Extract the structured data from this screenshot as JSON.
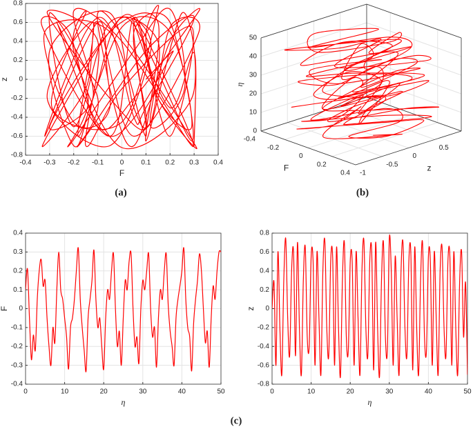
{
  "chart_data": [
    {
      "type": "phase",
      "xlabel": "F",
      "ylabel": "z",
      "caption": "(a)",
      "color": "#ff0000",
      "grid": true,
      "xlim": [
        -0.4,
        0.4
      ],
      "xticks": [
        -0.4,
        -0.3,
        -0.2,
        -0.1,
        0,
        0.1,
        0.2,
        0.3,
        0.4
      ],
      "ylim": [
        -0.8,
        0.8
      ],
      "yticks": [
        -0.8,
        -0.6,
        -0.4,
        -0.2,
        0,
        0.2,
        0.4,
        0.6,
        0.8
      ]
    },
    {
      "type": "line3d",
      "xlabel": "F",
      "ylabel": "z",
      "zlabel": "η",
      "caption": "(b)",
      "color": "#ff0000",
      "grid": true,
      "xlim": [
        -0.4,
        0.4
      ],
      "xticks": [
        -0.4,
        -0.2,
        0,
        0.2,
        0.4
      ],
      "ylim": [
        -1,
        1
      ],
      "yticks": [
        -1,
        -0.5,
        0,
        0.5
      ],
      "zlim": [
        0,
        50
      ],
      "zticks": [
        0,
        10,
        20,
        30,
        40,
        50
      ]
    },
    {
      "type": "line",
      "xlabel": "η",
      "ylabel": "F",
      "caption": "(c)",
      "color": "#ff0000",
      "grid": true,
      "xlim": [
        0,
        50
      ],
      "xticks": [
        0,
        10,
        20,
        30,
        40,
        50
      ],
      "ylim": [
        -0.4,
        0.4
      ],
      "yticks": [
        -0.4,
        -0.3,
        -0.2,
        -0.1,
        0,
        0.1,
        0.2,
        0.3,
        0.4
      ],
      "x": [
        0,
        0.5,
        1,
        1.5,
        2,
        2.5,
        3,
        3.5,
        4,
        4.5,
        5,
        5.5,
        6,
        6.5,
        7,
        7.5,
        8,
        8.5,
        9,
        9.5,
        10,
        10.5,
        11,
        11.5,
        12,
        12.5,
        13,
        13.5,
        14,
        14.5,
        15,
        15.5,
        16,
        16.5,
        17,
        17.5,
        18,
        18.5,
        19,
        19.5,
        20,
        20.5,
        21,
        21.5,
        22,
        22.5,
        23,
        23.5,
        24,
        24.5,
        25,
        25.5,
        26,
        26.5,
        27,
        27.5,
        28,
        28.5,
        29,
        29.5,
        30,
        30.5,
        31,
        31.5,
        32,
        32.5,
        33,
        33.5,
        34,
        34.5,
        35,
        35.5,
        36,
        36.5,
        37,
        37.5,
        38,
        38.5,
        39,
        39.5,
        40,
        40.5,
        41,
        41.5,
        42,
        42.5,
        43,
        43.5,
        44,
        44.5,
        45,
        45.5,
        46,
        46.5,
        47,
        47.5,
        48,
        48.5,
        49,
        49.5,
        50
      ],
      "values": [
        0.1,
        0.21,
        -0.05,
        -0.27,
        -0.14,
        -0.22,
        0.05,
        0.2,
        0.26,
        0.12,
        0.15,
        -0.05,
        -0.2,
        -0.3,
        -0.1,
        -0.18,
        0.1,
        0.3,
        0.1,
        0.05,
        -0.05,
        -0.15,
        -0.32,
        -0.1,
        -0.05,
        0.05,
        0.2,
        0.32,
        0.05,
        -0.1,
        -0.22,
        -0.33,
        -0.05,
        0.05,
        0.15,
        0.31,
        0.05,
        -0.1,
        -0.05,
        -0.2,
        -0.32,
        -0.05,
        0.1,
        0.05,
        0.2,
        0.29,
        0,
        -0.2,
        -0.12,
        -0.3,
        -0.05,
        0.15,
        0.1,
        0.25,
        0.29,
        0,
        -0.2,
        -0.15,
        -0.29,
        0,
        0.15,
        0.1,
        0.2,
        0.29,
        0,
        -0.15,
        -0.1,
        -0.31,
        -0.05,
        0.1,
        0.05,
        0.2,
        0.29,
        0.02,
        -0.12,
        -0.2,
        -0.3,
        -0.05,
        0.05,
        0.12,
        0.2,
        0.32,
        0.05,
        -0.1,
        -0.15,
        -0.33,
        -0.08,
        0.05,
        0.15,
        0.29,
        0.2,
        0,
        -0.18,
        -0.12,
        -0.31,
        -0.05,
        0.12,
        0.05,
        0.2,
        0.3,
        0.3
      ]
    },
    {
      "type": "line",
      "xlabel": "η",
      "ylabel": "z",
      "color": "#ff0000",
      "grid": true,
      "xlim": [
        0,
        50
      ],
      "xticks": [
        0,
        10,
        20,
        30,
        40,
        50
      ],
      "ylim": [
        -0.8,
        0.8
      ],
      "yticks": [
        -0.8,
        -0.6,
        -0.4,
        -0.2,
        0,
        0.2,
        0.4,
        0.6,
        0.8
      ],
      "values": [
        0,
        0.28,
        -0.6,
        0.6,
        -0.2,
        -0.7,
        0.3,
        0.74,
        -0.1,
        -0.5,
        0.4,
        0.6,
        -0.5,
        0.7,
        -0.2,
        -0.7,
        0.3,
        0.65,
        -0.3,
        -0.4,
        0.55,
        0.5,
        -0.6,
        0.6,
        -0.1,
        -0.7,
        0.4,
        0.72,
        -0.2,
        -0.5,
        0.5,
        0.55,
        -0.6,
        0.65,
        -0.2,
        -0.72,
        0.3,
        0.7,
        -0.3,
        -0.45,
        0.5,
        0.5,
        -0.6,
        0.6,
        -0.1,
        -0.7,
        0.4,
        0.72,
        -0.2,
        -0.5,
        0.5,
        0.6,
        -0.65,
        0.7,
        -0.2,
        -0.72,
        0.3,
        0.7,
        -0.3,
        -0.45,
        0.74,
        0.4,
        -0.6,
        0.55,
        -0.1,
        -0.7,
        0.4,
        0.7,
        -0.2,
        -0.5,
        0.5,
        0.6,
        -0.65,
        0.65,
        -0.2,
        -0.7,
        0.3,
        0.7,
        -0.3,
        -0.45,
        0.55,
        0.5,
        -0.6,
        0.6,
        -0.1,
        -0.7,
        0.4,
        0.65,
        -0.2,
        -0.5,
        0.5,
        0.55,
        -0.6,
        0.6,
        -0.2,
        -0.7,
        0.3,
        0.6,
        -0.3,
        0.28,
        -0.7
      ]
    }
  ]
}
